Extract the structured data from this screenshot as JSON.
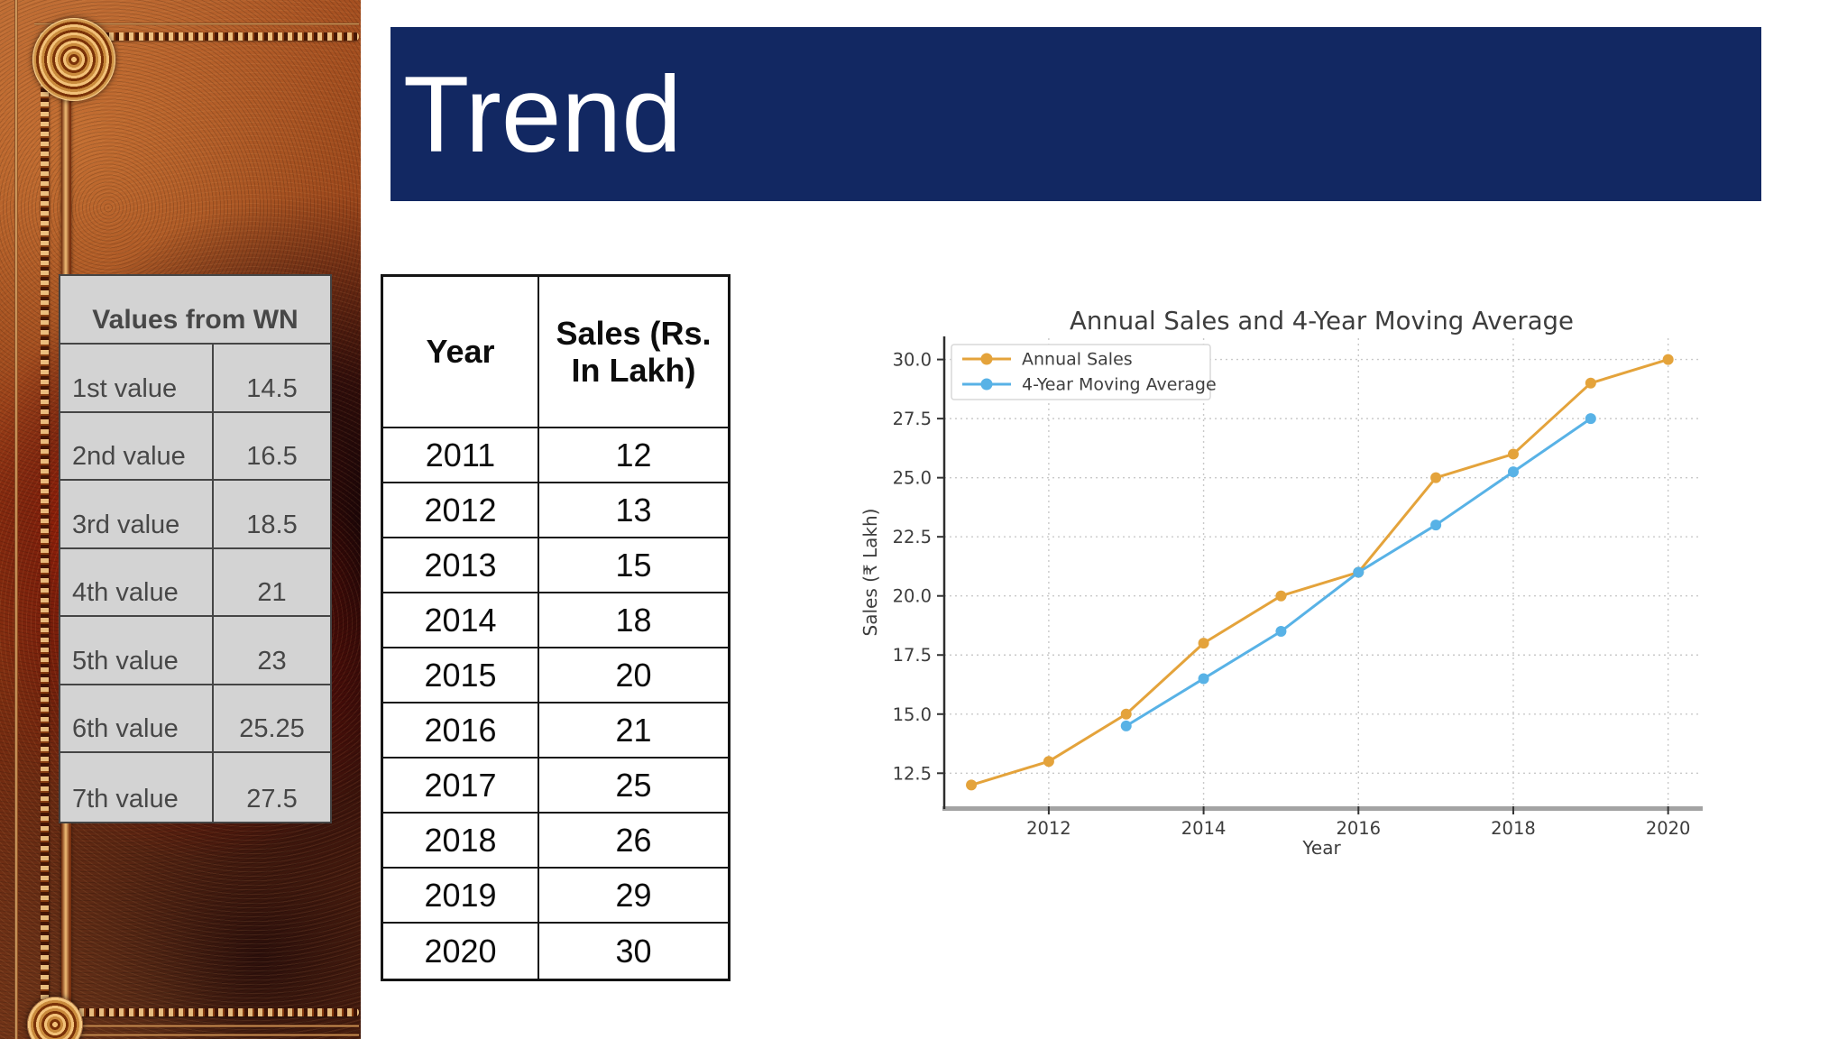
{
  "slide": {
    "title": "Trend"
  },
  "colors": {
    "title_bar": "#122862",
    "wn_table_bg": "#d3d3d3",
    "wn_table_text": "#474747",
    "annual_sales": "#e4a33b",
    "moving_average": "#58b2e6",
    "chart_text": "#3d3d3d",
    "grid": "#c9c9c9",
    "bottom_spine": "#a3a3a3",
    "left_spine": "#2e2e2e"
  },
  "wn_table": {
    "header": "Values from WN",
    "rows": [
      {
        "label": "1st value",
        "value": "14.5"
      },
      {
        "label": "2nd value",
        "value": "16.5"
      },
      {
        "label": "3rd value",
        "value": "18.5"
      },
      {
        "label": "4th value",
        "value": "21"
      },
      {
        "label": "5th value",
        "value": "23"
      },
      {
        "label": "6th value",
        "value": "25.25"
      },
      {
        "label": "7th value",
        "value": "27.5"
      }
    ]
  },
  "sales_table": {
    "columns": [
      "Year",
      "Sales (Rs. In Lakh)"
    ],
    "rows": [
      {
        "year": "2011",
        "sales": "12"
      },
      {
        "year": "2012",
        "sales": "13"
      },
      {
        "year": "2013",
        "sales": "15"
      },
      {
        "year": "2014",
        "sales": "18"
      },
      {
        "year": "2015",
        "sales": "20"
      },
      {
        "year": "2016",
        "sales": "21"
      },
      {
        "year": "2017",
        "sales": "25"
      },
      {
        "year": "2018",
        "sales": "26"
      },
      {
        "year": "2019",
        "sales": "29"
      },
      {
        "year": "2020",
        "sales": "30"
      }
    ]
  },
  "chart_data": {
    "type": "line",
    "title": "Annual Sales and 4-Year Moving Average",
    "xlabel": "Year",
    "ylabel": "Sales (₹ Lakh)",
    "xlim": [
      2010.65,
      2020.4
    ],
    "ylim": [
      11.1,
      30.9
    ],
    "x_ticks": [
      2012,
      2014,
      2016,
      2018,
      2020
    ],
    "y_ticks": [
      12.5,
      15.0,
      17.5,
      20.0,
      22.5,
      25.0,
      27.5,
      30.0
    ],
    "y_tick_labels": [
      "12.5",
      "15.0",
      "17.5",
      "20.0",
      "22.5",
      "25.0",
      "27.5",
      "30.0"
    ],
    "grid": true,
    "legend_position": "upper left",
    "series": [
      {
        "name": "Annual Sales",
        "color": "#e4a33b",
        "x": [
          2011,
          2012,
          2013,
          2014,
          2015,
          2016,
          2017,
          2018,
          2019,
          2020
        ],
        "y": [
          12,
          13,
          15,
          18,
          20,
          21,
          25,
          26,
          29,
          30
        ]
      },
      {
        "name": "4-Year Moving Average",
        "color": "#58b2e6",
        "x": [
          2013,
          2014,
          2015,
          2016,
          2017,
          2018,
          2019
        ],
        "y": [
          14.5,
          16.5,
          18.5,
          21,
          23,
          25.25,
          27.5
        ]
      }
    ]
  }
}
